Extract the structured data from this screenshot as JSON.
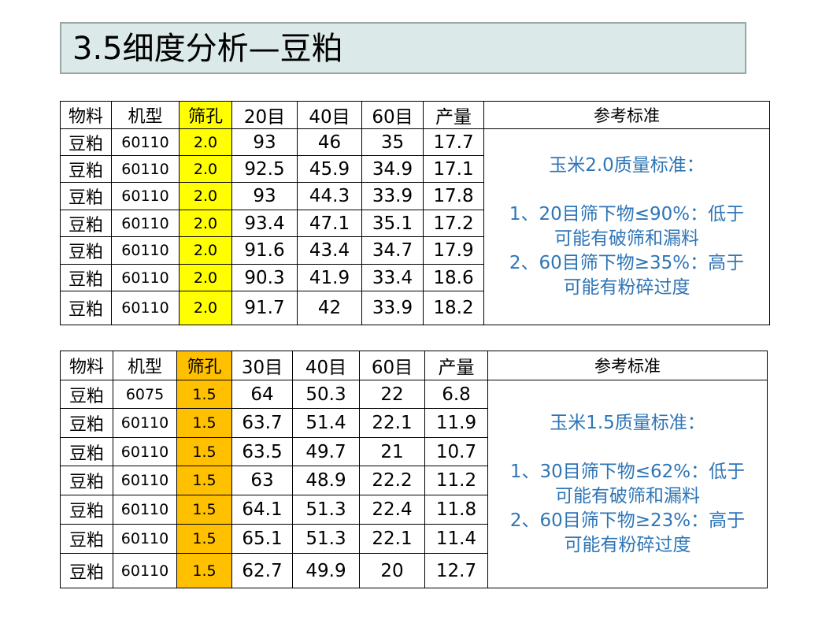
{
  "title": "3.5细度分析—豆粕",
  "table1": {
    "headers": [
      "物料",
      "机型",
      "筛孔",
      "20目",
      "40目",
      "60目",
      "产量",
      "参考标准"
    ],
    "rows": [
      [
        "豆粕",
        "60110",
        "2.0",
        "93",
        "46",
        "35",
        "17.7"
      ],
      [
        "豆粕",
        "60110",
        "2.0",
        "92.5",
        "45.9",
        "34.9",
        "17.1"
      ],
      [
        "豆粕",
        "60110",
        "2.0",
        "93",
        "44.3",
        "33.9",
        "17.8"
      ],
      [
        "豆粕",
        "60110",
        "2.0",
        "93.4",
        "47.1",
        "35.1",
        "17.2"
      ],
      [
        "豆粕",
        "60110",
        "2.0",
        "91.6",
        "43.4",
        "34.7",
        "17.9"
      ],
      [
        "豆粕",
        "60110",
        "2.0",
        "90.3",
        "41.9",
        "33.4",
        "18.6"
      ],
      [
        "豆粕",
        "60110",
        "2.0",
        "91.7",
        "42",
        "33.9",
        "18.2"
      ]
    ],
    "standard": {
      "heading": "玉米2.0质量标准：",
      "line1": "1、20目筛下物≤90%：低于",
      "line2": "可能有破筛和漏料",
      "line3": "2、60目筛下物≥35%：高于",
      "line4": "可能有粉碎过度"
    },
    "highlight_color": "#ffff00"
  },
  "table2": {
    "headers": [
      "物料",
      "机型",
      "筛孔",
      "30目",
      "40目",
      "60目",
      "产量",
      "参考标准"
    ],
    "rows": [
      [
        "豆粕",
        "6075",
        "1.5",
        "64",
        "50.3",
        "22",
        "6.8"
      ],
      [
        "豆粕",
        "60110",
        "1.5",
        "63.7",
        "51.4",
        "22.1",
        "11.9"
      ],
      [
        "豆粕",
        "60110",
        "1.5",
        "63.5",
        "49.7",
        "21",
        "10.7"
      ],
      [
        "豆粕",
        "60110",
        "1.5",
        "63",
        "48.9",
        "22.2",
        "11.2"
      ],
      [
        "豆粕",
        "60110",
        "1.5",
        "64.1",
        "51.3",
        "22.4",
        "11.8"
      ],
      [
        "豆粕",
        "60110",
        "1.5",
        "65.1",
        "51.3",
        "22.1",
        "11.4"
      ],
      [
        "豆粕",
        "60110",
        "1.5",
        "62.7",
        "49.9",
        "20",
        "12.7"
      ]
    ],
    "standard": {
      "heading": "玉米1.5质量标准：",
      "line1": "1、30目筛下物≤62%：低于",
      "line2": "可能有破筛和漏料",
      "line3": "2、60目筛下物≥23%：高于",
      "line4": "可能有粉碎过度"
    },
    "highlight_color": "#ffc000"
  },
  "text_color_standard": "#2e75b6",
  "title_bg": "#dbe9e9"
}
